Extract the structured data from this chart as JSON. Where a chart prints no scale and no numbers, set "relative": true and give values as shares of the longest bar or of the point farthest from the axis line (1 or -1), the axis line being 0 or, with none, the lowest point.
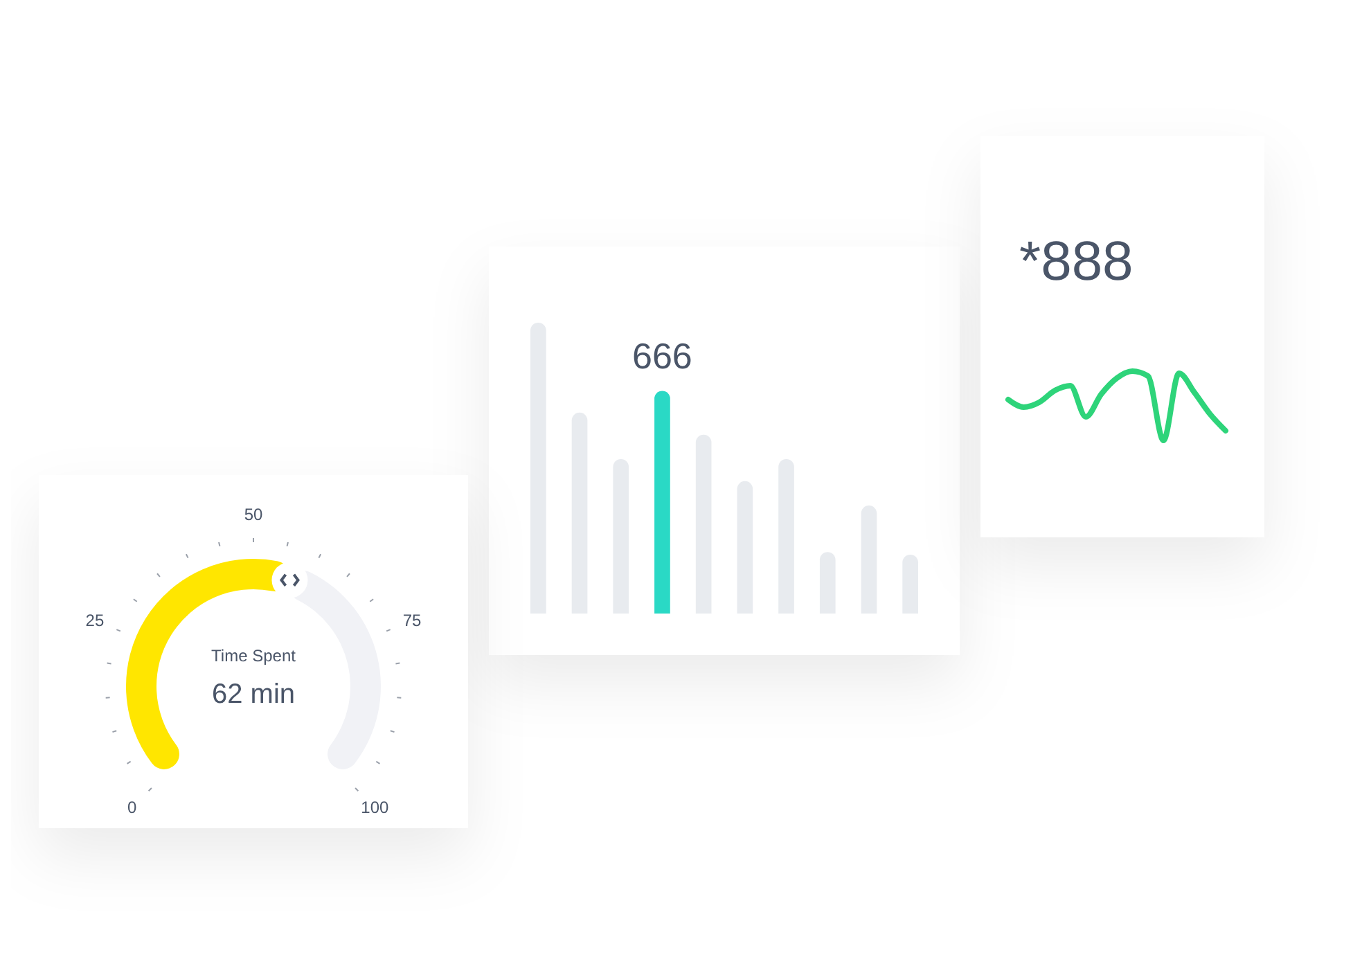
{
  "chart_data": [
    {
      "type": "bar",
      "categories": [
        null,
        null,
        null,
        null,
        null,
        null,
        null,
        null,
        null,
        null
      ],
      "values": [
        870,
        601,
        462,
        666,
        535,
        396,
        462,
        184,
        323,
        176
      ],
      "colors": [
        "#e8ebef",
        "#e8ebef",
        "#e8ebef",
        "#2ad9c5",
        "#e8ebef",
        "#e8ebef",
        "#e8ebef",
        "#e8ebef",
        "#e8ebef",
        "#e8ebef"
      ],
      "value_labels": [
        null,
        null,
        null,
        "666",
        null,
        null,
        null,
        null,
        null,
        null
      ]
    },
    {
      "type": "donut",
      "categories": [
        null,
        null
      ],
      "values": [
        57,
        43
      ],
      "colors": [
        "#ffe600",
        "#f1f2f6"
      ],
      "annotations": [
        "Time Spent",
        "62 min",
        "0",
        "25",
        "50",
        "75",
        "100"
      ]
    },
    {
      "type": "line",
      "relative": true,
      "title": "*888",
      "categories": [
        null,
        null,
        null,
        null,
        null,
        null,
        null,
        null,
        null,
        null,
        null,
        null,
        null,
        null,
        null
      ],
      "series": [
        {
          "color": "#2ed47a",
          "values": [
            0.59,
            0.48,
            0.55,
            0.72,
            0.79,
            0.34,
            0.67,
            0.9,
            1.0,
            0.93,
            0,
            0.97,
            0.69,
            0.38,
            0.14
          ]
        }
      ]
    }
  ]
}
